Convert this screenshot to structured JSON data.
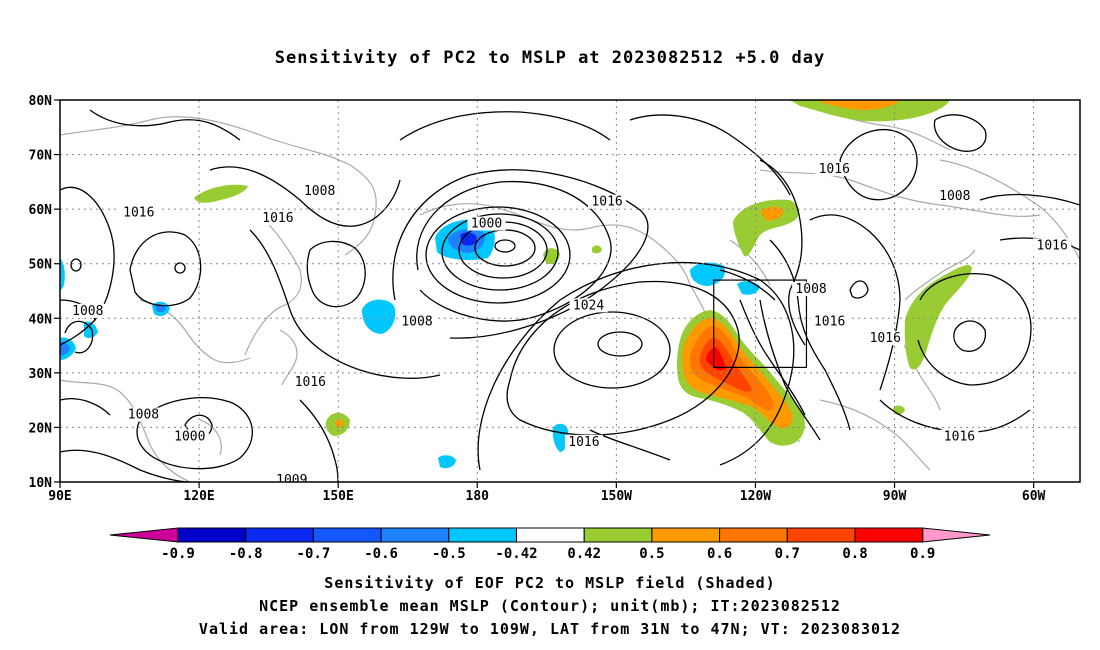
{
  "title": "Sensitivity of PC2 to MSLP at 2023082512 +5.0 day",
  "map": {
    "lat_ticks": [
      "80N",
      "70N",
      "60N",
      "50N",
      "40N",
      "30N",
      "20N",
      "10N"
    ],
    "lon_ticks": [
      "90E",
      "120E",
      "150E",
      "180",
      "150W",
      "120W",
      "90W",
      "60W"
    ],
    "lon_range": [
      90,
      310
    ],
    "lat_range": [
      10,
      80
    ],
    "grid": "dotted",
    "valid_box": {
      "lon_min": -129,
      "lon_max": -109,
      "lat_min": 31,
      "lat_max": 47
    },
    "contour_labels": [
      {
        "text": "1016",
        "lon": 107,
        "lat": 59
      },
      {
        "text": "1008",
        "lon": 96,
        "lat": 41
      },
      {
        "text": "1008",
        "lon": 108,
        "lat": 22
      },
      {
        "text": "1000",
        "lon": 118,
        "lat": 18
      },
      {
        "text": "1009",
        "lon": 140,
        "lat": 10
      },
      {
        "text": "1008",
        "lon": 146,
        "lat": 63
      },
      {
        "text": "1016",
        "lon": 137,
        "lat": 58
      },
      {
        "text": "1016",
        "lon": 144,
        "lat": 28
      },
      {
        "text": "1008",
        "lon": 167,
        "lat": 39
      },
      {
        "text": "1000",
        "lon": 182,
        "lat": 57
      },
      {
        "text": "1016",
        "lon": 208,
        "lat": 61
      },
      {
        "text": "1024",
        "lon": 204,
        "lat": 42
      },
      {
        "text": "1016",
        "lon": 203,
        "lat": 17
      },
      {
        "text": "1016",
        "lon": 257,
        "lat": 67
      },
      {
        "text": "1008",
        "lon": 252,
        "lat": 45
      },
      {
        "text": "1016",
        "lon": 256,
        "lat": 39
      },
      {
        "text": "1016",
        "lon": 268,
        "lat": 36
      },
      {
        "text": "1008",
        "lon": 283,
        "lat": 62
      },
      {
        "text": "1016",
        "lon": 284,
        "lat": 18
      },
      {
        "text": "1016",
        "lon": 304,
        "lat": 53
      }
    ]
  },
  "colorbar": {
    "labels": [
      "-0.9",
      "-0.8",
      "-0.7",
      "-0.6",
      "-0.5",
      "-0.42",
      "0.42",
      "0.5",
      "0.6",
      "0.7",
      "0.8",
      "0.9"
    ],
    "colors": [
      "#0000cc",
      "#0a28ee",
      "#1456ff",
      "#1e82ff",
      "#00c8ff",
      "#ffffff",
      "#99cc33",
      "#ff9900",
      "#ff7700",
      "#ff4400",
      "#ff0000"
    ],
    "under_color": "#cc0099",
    "over_color": "#ff99cc"
  },
  "captions": {
    "line1": "Sensitivity of EOF PC2 to MSLP field (Shaded)",
    "line2": "NCEP ensemble mean MSLP (Contour); unit(mb); IT:2023082512",
    "line3": "Valid area: LON from 129W to 109W, LAT from 31N to 47N; VT: 2023083012"
  }
}
